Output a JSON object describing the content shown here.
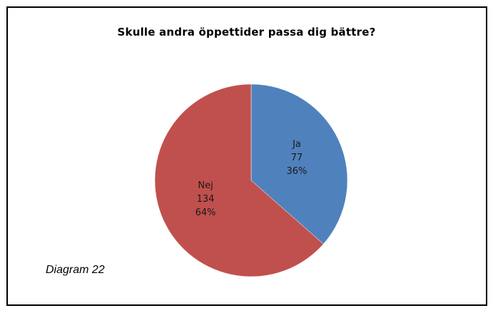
{
  "chart_data": {
    "type": "pie",
    "title": "Skulle andra öppettider passa dig bättre?",
    "slices": [
      {
        "label": "Ja",
        "value": 77,
        "percent": "36%",
        "color": "#4f81bd"
      },
      {
        "label": "Nej",
        "value": 134,
        "percent": "64%",
        "color": "#c0504d"
      }
    ]
  },
  "caption": "Diagram 22"
}
